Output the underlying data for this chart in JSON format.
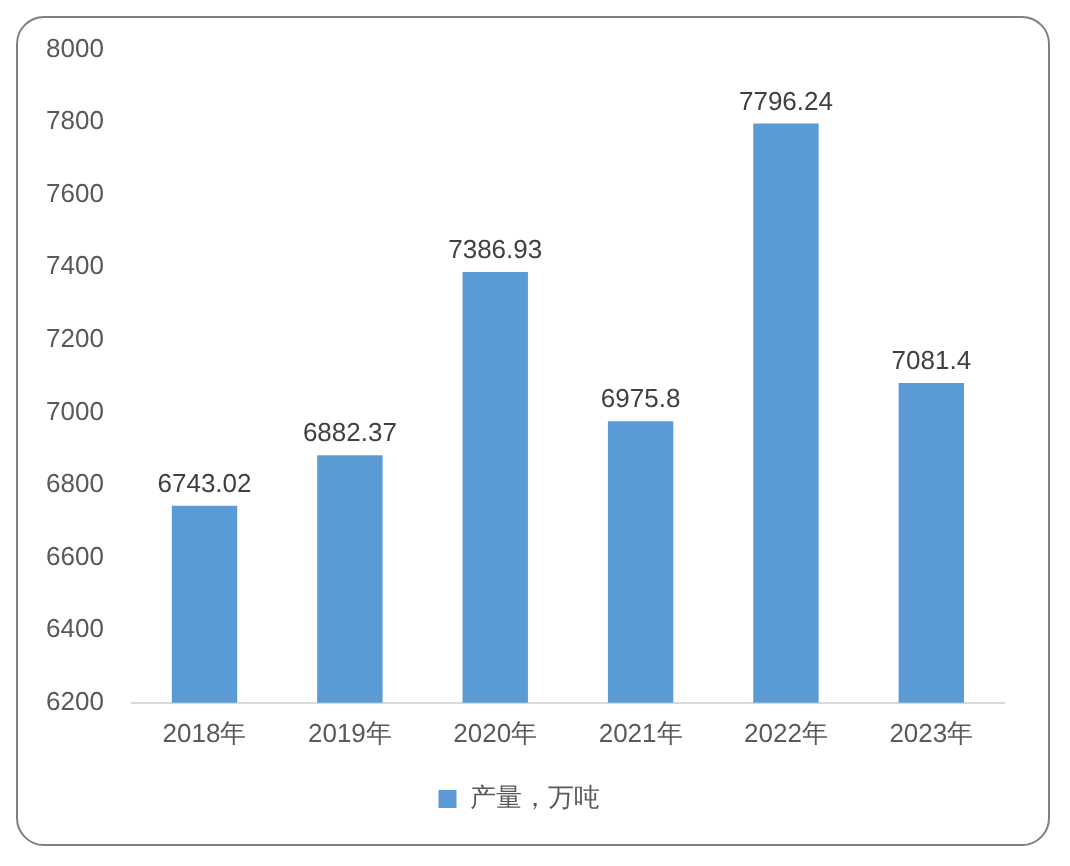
{
  "chart_data": {
    "type": "bar",
    "categories": [
      "2018年",
      "2019年",
      "2020年",
      "2021年",
      "2022年",
      "2023年"
    ],
    "series": [
      {
        "name": "产量，万吨",
        "color": "#5b9bd5",
        "values": [
          6743.02,
          6882.37,
          7386.93,
          6975.8,
          7796.24,
          7081.4
        ]
      }
    ],
    "ylim": [
      6200,
      8000
    ],
    "yticks": [
      6200,
      6400,
      6600,
      6800,
      7000,
      7200,
      7400,
      7600,
      7800,
      8000
    ],
    "grid": false,
    "legend": "bottom",
    "data_labels": true
  }
}
